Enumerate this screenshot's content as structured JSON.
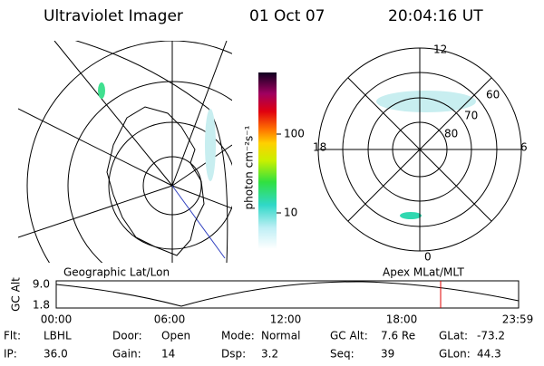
{
  "header": {
    "title": "Ultraviolet Imager",
    "date": "01 Oct 07",
    "time": "20:04:16 UT"
  },
  "colorbar": {
    "label": "photon cm⁻²s⁻¹",
    "ticks": [
      "100",
      "10"
    ]
  },
  "polar_plot": {
    "labels": [
      "12",
      "18",
      "6",
      "0",
      "60",
      "70",
      "80"
    ]
  },
  "altitude_plot": {
    "left_label": "Geographic Lat/Lon",
    "right_label": "Apex MLat/MLT",
    "axis_label": "GC Alt",
    "yticks": [
      "9.0",
      "1.8"
    ],
    "xticks": [
      "00:00",
      "06:00",
      "12:00",
      "18:00",
      "23:59"
    ]
  },
  "footer": {
    "rows": [
      [
        [
          "Flt:",
          "LBHL"
        ],
        [
          "Door:",
          "Open"
        ],
        [
          "Mode:",
          "Normal"
        ],
        [
          "GC Alt:",
          "7.6 Re"
        ],
        [
          "GLat:",
          "-73.2"
        ]
      ],
      [
        [
          "IP:",
          "36.0"
        ],
        [
          "Gain:",
          "14"
        ],
        [
          "Dsp:",
          "3.2"
        ],
        [
          "Seq:",
          "39"
        ],
        [
          "GLon:",
          "44.3"
        ]
      ]
    ]
  }
}
